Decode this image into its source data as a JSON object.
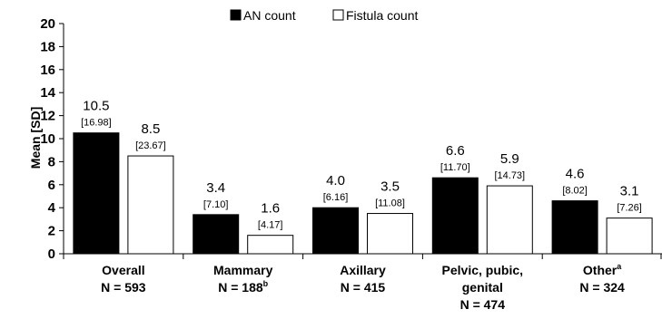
{
  "chart_data": {
    "type": "bar",
    "title": "",
    "xlabel": "",
    "ylabel": "Mean [SD]",
    "ylim": [
      0,
      20
    ],
    "yticks": [
      0,
      2,
      4,
      6,
      8,
      10,
      12,
      14,
      16,
      18,
      20
    ],
    "grid": false,
    "legend_position": "top",
    "categories": [
      {
        "lines": [
          "Overall",
          "N = 593"
        ]
      },
      {
        "lines": [
          "Mammary",
          "N = 188"
        ],
        "superscript": "b"
      },
      {
        "lines": [
          "Axillary",
          "N = 415"
        ]
      },
      {
        "lines": [
          "Pelvic, pubic,",
          "genital",
          "N = 474"
        ]
      },
      {
        "lines": [
          "Other",
          "N = 324"
        ],
        "superscript": "a"
      }
    ],
    "series": [
      {
        "name": "AN count",
        "color": "#000000",
        "values": [
          10.5,
          3.4,
          4.0,
          6.6,
          4.6
        ],
        "value_labels": [
          "10.5",
          "3.4",
          "4.0",
          "6.6",
          "4.6"
        ],
        "sd_labels": [
          "[16.98]",
          "[7.10]",
          "[6.16]",
          "[11.70]",
          "[8.02]"
        ]
      },
      {
        "name": "Fistula count",
        "color": "#ffffff",
        "values": [
          8.5,
          1.6,
          3.5,
          5.9,
          3.1
        ],
        "value_labels": [
          "8.5",
          "1.6",
          "3.5",
          "5.9",
          "3.1"
        ],
        "sd_labels": [
          "[23.67]",
          "[4.17]",
          "[11.08]",
          "[14.73]",
          "[7.26]"
        ]
      }
    ]
  }
}
